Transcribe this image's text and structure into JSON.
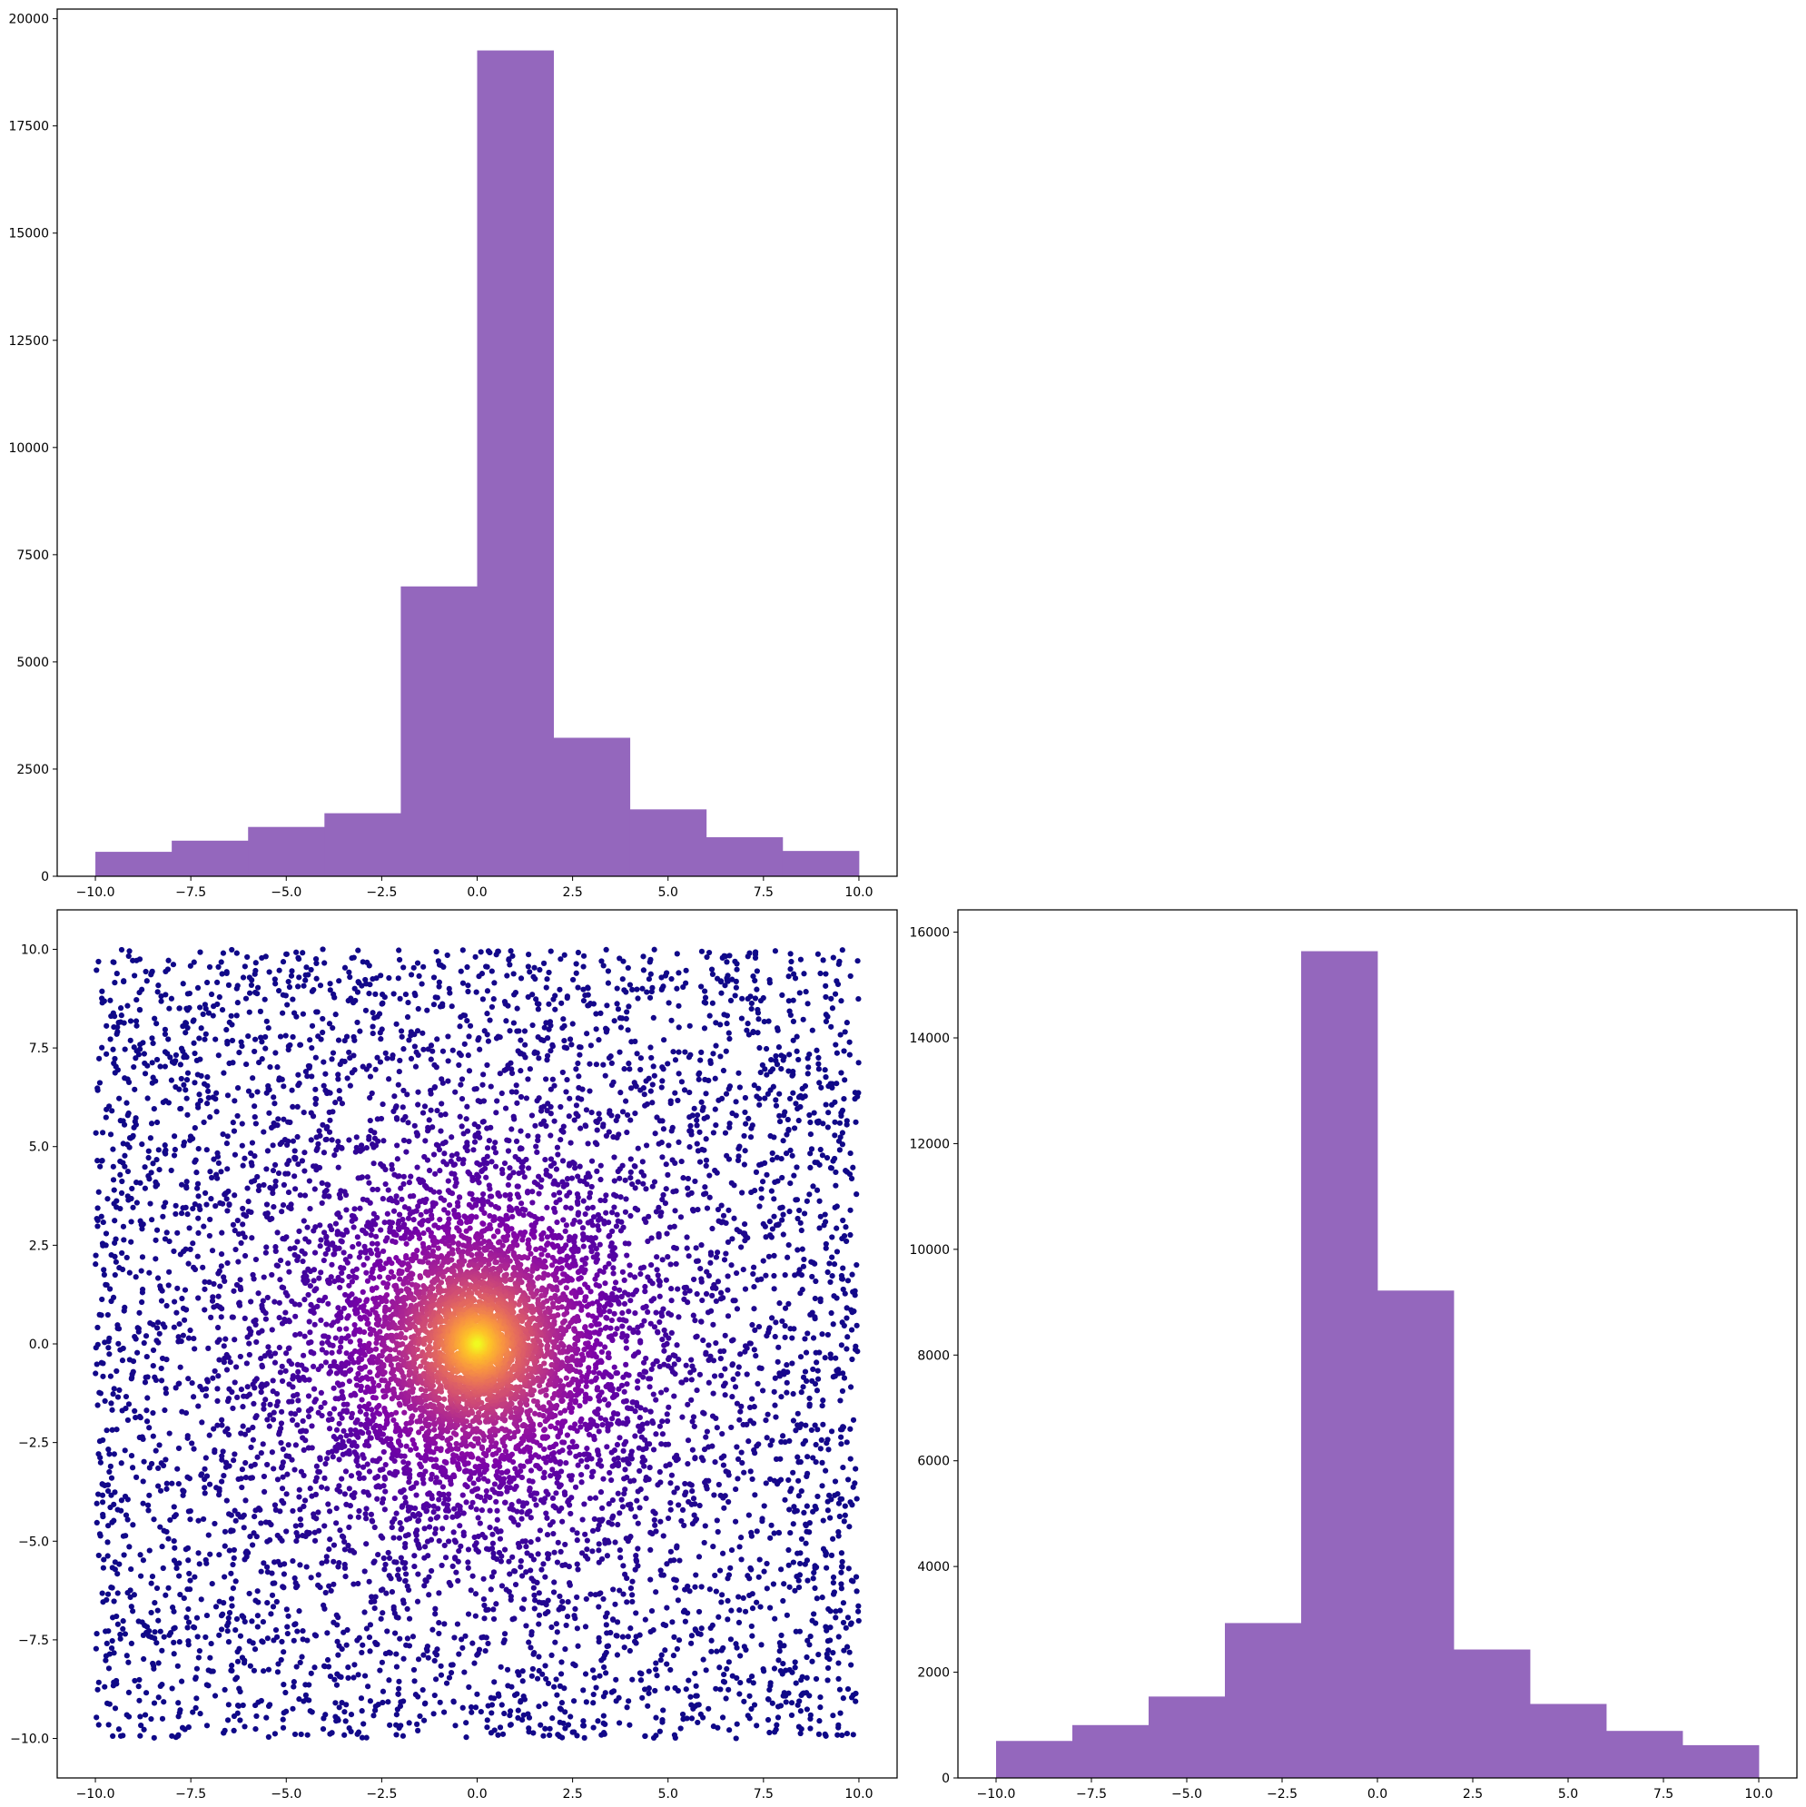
{
  "colors": {
    "hist_fill": "#9467bd",
    "scatter_colormap": "plasma",
    "axes_edge": "#000000",
    "background": "#ffffff"
  },
  "chart_data": [
    {
      "id": "top-left-histogram",
      "type": "bar",
      "title": "",
      "xlabel": "",
      "ylabel": "",
      "bin_edges": [
        -10,
        -8,
        -6,
        -4,
        -2,
        0,
        2,
        4,
        6,
        8,
        10
      ],
      "values": [
        570,
        830,
        1150,
        1470,
        6760,
        19260,
        3230,
        1560,
        910,
        590
      ],
      "xlim": [
        -11,
        11
      ],
      "ylim": [
        0,
        20225
      ],
      "xticks": [
        "−10.0",
        "−7.5",
        "−5.0",
        "−2.5",
        "0.0",
        "2.5",
        "5.0",
        "7.5",
        "10.0"
      ],
      "yticks": [
        "0",
        "2500",
        "5000",
        "7500",
        "10000",
        "12500",
        "15000",
        "17500",
        "20000"
      ],
      "grid": false,
      "legend": null
    },
    {
      "id": "bottom-left-scatter",
      "type": "scatter",
      "title": "",
      "xlabel": "",
      "ylabel": "",
      "x_range": [
        -10,
        10
      ],
      "y_range": [
        -10,
        10
      ],
      "center": [
        0,
        0
      ],
      "color_encoding": "point density (plasma colormap: dark purple at edges, yellow at center)",
      "xlim": [
        -11,
        11
      ],
      "ylim": [
        -11,
        11
      ],
      "xticks": [
        "−10.0",
        "−7.5",
        "−5.0",
        "−2.5",
        "0.0",
        "2.5",
        "5.0",
        "7.5",
        "10.0"
      ],
      "yticks": [
        "−10.0",
        "−7.5",
        "−5.0",
        "−2.5",
        "0.0",
        "2.5",
        "5.0",
        "7.5",
        "10.0"
      ],
      "grid": false,
      "legend": null
    },
    {
      "id": "bottom-right-histogram",
      "type": "bar",
      "title": "",
      "xlabel": "",
      "ylabel": "",
      "bin_edges": [
        -10,
        -8,
        -6,
        -4,
        -2,
        0,
        2,
        4,
        6,
        8,
        10
      ],
      "values": [
        700,
        1000,
        1540,
        2930,
        15640,
        9220,
        2430,
        1400,
        890,
        620
      ],
      "xlim": [
        -11,
        11
      ],
      "ylim": [
        0,
        16422
      ],
      "xticks": [
        "−10.0",
        "−7.5",
        "−5.0",
        "−2.5",
        "0.0",
        "2.5",
        "5.0",
        "7.5",
        "10.0"
      ],
      "yticks": [
        "0",
        "2000",
        "4000",
        "6000",
        "8000",
        "10000",
        "12000",
        "14000",
        "16000"
      ],
      "grid": false,
      "legend": null
    }
  ]
}
